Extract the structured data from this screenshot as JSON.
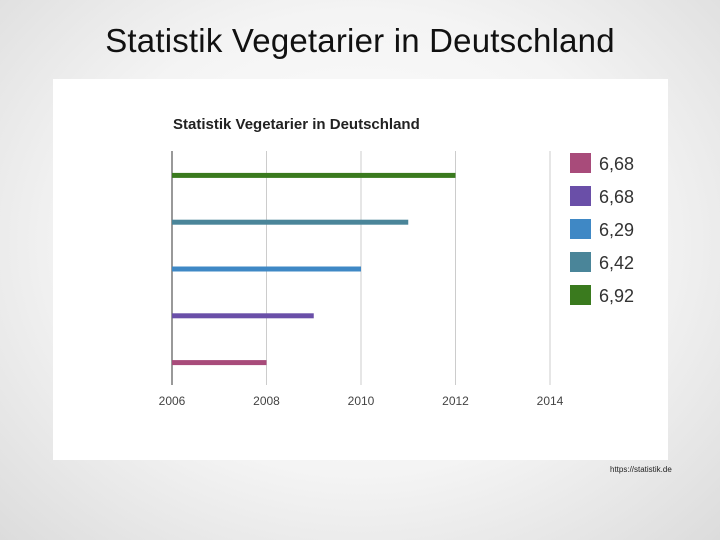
{
  "slide": {
    "title": "Statistik Vegetarier in Deutschland",
    "source": "https://statistik.de"
  },
  "chart_data": {
    "type": "bar",
    "orientation": "horizontal",
    "title": "Statistik Vegetarier in Deutschland",
    "xlabel": "",
    "ylabel": "",
    "x_ticks": [
      "2006",
      "2008",
      "2010",
      "2012",
      "2014"
    ],
    "xlim": [
      2006,
      2014
    ],
    "grid": true,
    "legend_position": "right",
    "series": [
      {
        "name": "6,68",
        "color": "#a84b7a",
        "value": 2008
      },
      {
        "name": "6,68",
        "color": "#6a4fa8",
        "value": 2009
      },
      {
        "name": "6,29",
        "color": "#3f88c5",
        "value": 2010
      },
      {
        "name": "6,42",
        "color": "#4a8599",
        "value": 2011
      },
      {
        "name": "6,92",
        "color": "#3a7a1e",
        "value": 2012
      }
    ]
  }
}
